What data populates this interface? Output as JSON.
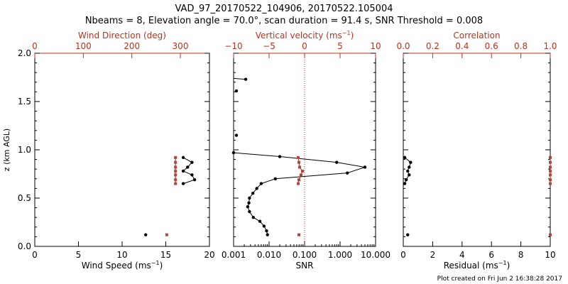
{
  "header": {
    "title": "VAD_97_20170522_104906, 20170522.105004",
    "subtitle": "Nbeams = 8, Elevation angle = 70.0°, scan duration = 91.4 s, SNR Threshold = 0.008"
  },
  "footer": {
    "timestamp": "Plot created on Fri Jun  2 16:38:28 2017"
  },
  "colors": {
    "axis": "#000000",
    "secondary": "#c0301c",
    "secondary_points": "#b5453a"
  },
  "chart_data": [
    {
      "type": "scatter",
      "ylabel": "z (km AGL)",
      "ylim": [
        0,
        2.0
      ],
      "yticks": [
        "0.0",
        "0.5",
        "1.0",
        "1.5",
        "2.0"
      ],
      "xlabel": "Wind Speed (ms",
      "xlabel_sup": "−1",
      "xlabel_end": ")",
      "xlim": [
        0,
        20
      ],
      "xticks": [
        "0",
        "5",
        "10",
        "15",
        "20"
      ],
      "top_label": "Wind Direction (deg)",
      "top_lim": [
        0,
        360
      ],
      "top_ticks": [
        "0",
        "100",
        "200",
        "300"
      ],
      "series": [
        {
          "kind": "primary",
          "points": [
            [
              17.0,
              0.92
            ],
            [
              18.0,
              0.87
            ],
            [
              17.5,
              0.82
            ],
            [
              17.0,
              0.78
            ],
            [
              18.0,
              0.74
            ],
            [
              18.3,
              0.69
            ],
            [
              17.0,
              0.65
            ]
          ],
          "isolated": [
            [
              12.7,
              0.12
            ]
          ]
        },
        {
          "kind": "secondary",
          "points": [
            [
              290,
              0.92
            ],
            [
              290,
              0.87
            ],
            [
              290,
              0.82
            ],
            [
              290,
              0.78
            ],
            [
              290,
              0.74
            ],
            [
              290,
              0.69
            ],
            [
              290,
              0.65
            ]
          ],
          "isolated": [
            [
              272,
              0.12
            ]
          ]
        }
      ]
    },
    {
      "type": "line",
      "ylim": [
        0,
        2.0
      ],
      "xlabel": "SNR",
      "xscale": "log",
      "xlim": [
        0.001,
        10.0
      ],
      "xticks": [
        "0.001",
        "0.010",
        "0.100",
        "1.000",
        "10.000"
      ],
      "top_label": "Vertical velocity (ms",
      "top_label_sup": "−1",
      "top_label_end": ")",
      "top_lim": [
        -10,
        10
      ],
      "top_ticks": [
        "−10",
        "−5",
        "0",
        "5",
        "10"
      ],
      "reference_line": 0,
      "series": [
        {
          "kind": "primary",
          "points": [
            [
              0.0005,
              0.97
            ],
            [
              0.02,
              0.93
            ],
            [
              0.8,
              0.87
            ],
            [
              5.0,
              0.82
            ],
            [
              1.6,
              0.76
            ],
            [
              0.015,
              0.7
            ],
            [
              0.006,
              0.65
            ],
            [
              0.0045,
              0.6
            ],
            [
              0.0035,
              0.55
            ],
            [
              0.0028,
              0.5
            ],
            [
              0.0027,
              0.45
            ],
            [
              0.0025,
              0.41
            ],
            [
              0.0028,
              0.36
            ],
            [
              0.0036,
              0.3
            ],
            [
              0.0055,
              0.26
            ],
            [
              0.0072,
              0.21
            ],
            [
              0.0085,
              0.16
            ],
            [
              0.009,
              0.12
            ]
          ],
          "isolated": [
            [
              0.0012,
              1.61
            ],
            [
              0.0012,
              1.15
            ]
          ],
          "hook": [
            [
              0.0009,
              1.74
            ],
            [
              0.0022,
              1.73
            ]
          ]
        },
        {
          "kind": "secondary",
          "points": [
            [
              -0.9,
              0.92
            ],
            [
              -0.8,
              0.87
            ],
            [
              -0.7,
              0.82
            ],
            [
              -0.3,
              0.78
            ],
            [
              -0.5,
              0.74
            ],
            [
              -0.8,
              0.69
            ],
            [
              -0.9,
              0.65
            ]
          ],
          "isolated": [
            [
              -0.8,
              0.12
            ]
          ]
        }
      ]
    },
    {
      "type": "scatter",
      "ylim": [
        0,
        2.0
      ],
      "xlabel": "Residual (ms",
      "xlabel_sup": "−1",
      "xlabel_end": ")",
      "xlim": [
        0,
        10
      ],
      "xticks": [
        "0",
        "2",
        "4",
        "6",
        "8",
        "10"
      ],
      "top_label": "Correlation",
      "top_lim": [
        0,
        1.0
      ],
      "top_ticks": [
        "0.0",
        "0.2",
        "0.4",
        "0.6",
        "0.8",
        "1.0"
      ],
      "series": [
        {
          "kind": "primary",
          "points": [
            [
              0.1,
              0.92
            ],
            [
              0.5,
              0.87
            ],
            [
              0.4,
              0.82
            ],
            [
              0.3,
              0.78
            ],
            [
              0.4,
              0.74
            ],
            [
              0.2,
              0.69
            ],
            [
              0.1,
              0.65
            ]
          ],
          "isolated": [
            [
              0.3,
              0.12
            ]
          ]
        },
        {
          "kind": "secondary",
          "points": [
            [
              1.0,
              0.92
            ],
            [
              1.0,
              0.87
            ],
            [
              1.0,
              0.82
            ],
            [
              1.0,
              0.78
            ],
            [
              1.0,
              0.74
            ],
            [
              1.0,
              0.69
            ],
            [
              1.0,
              0.65
            ]
          ],
          "isolated": [
            [
              1.0,
              0.12
            ]
          ]
        }
      ]
    }
  ]
}
